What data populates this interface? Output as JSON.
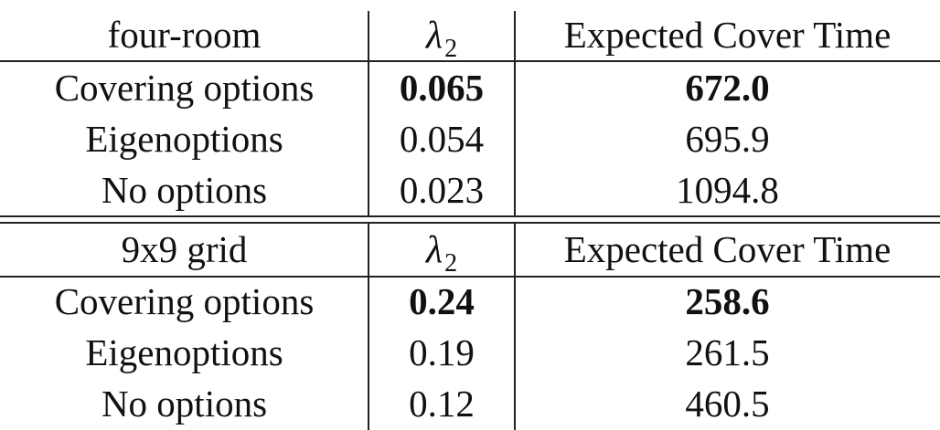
{
  "sections": [
    {
      "header": {
        "env": "four-room",
        "metric": "λ",
        "metric_sub": "2",
        "cover_col": "Expected Cover Time"
      },
      "rows": [
        {
          "method": "Covering options",
          "lambda": "0.065",
          "cover": "672.0",
          "best": true
        },
        {
          "method": "Eigenoptions",
          "lambda": "0.054",
          "cover": "695.9",
          "best": false
        },
        {
          "method": "No options",
          "lambda": "0.023",
          "cover": "1094.8",
          "best": false
        }
      ]
    },
    {
      "header": {
        "env": "9x9 grid",
        "metric": "λ",
        "metric_sub": "2",
        "cover_col": "Expected Cover Time"
      },
      "rows": [
        {
          "method": "Covering options",
          "lambda": "0.24",
          "cover": "258.6",
          "best": true
        },
        {
          "method": "Eigenoptions",
          "lambda": "0.19",
          "cover": "261.5",
          "best": false
        },
        {
          "method": "No options",
          "lambda": "0.12",
          "cover": "460.5",
          "best": false
        }
      ]
    }
  ]
}
